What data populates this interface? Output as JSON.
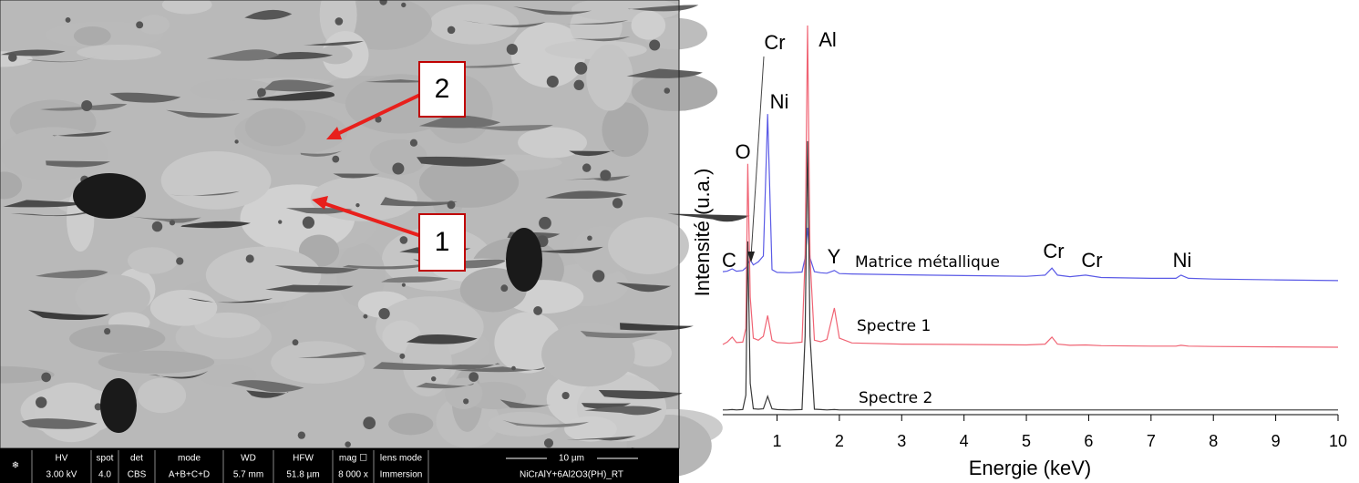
{
  "sem_image": {
    "labels": [
      "2",
      "1"
    ],
    "info_bar": {
      "columns": [
        {
          "header": "HV",
          "value": "3.00 kV"
        },
        {
          "header": "spot",
          "value": "4.0"
        },
        {
          "header": "det",
          "value": "CBS"
        },
        {
          "header": "mode",
          "value": "A+B+C+D"
        },
        {
          "header": "WD",
          "value": "5.7 mm"
        },
        {
          "header": "HFW",
          "value": "51.8 µm"
        },
        {
          "header": "mag ☐",
          "value": "8 000 x"
        },
        {
          "header": "lens mode",
          "value": "Immersion"
        }
      ],
      "scale_bar": "10 µm",
      "sample": "NiCrAlY+6Al2O3(PH)_RT"
    }
  },
  "chart_data": {
    "type": "line",
    "x_label": "Energie (keV)",
    "y_label": "Intensité (u.a.)",
    "x": [
      0.13,
      0.2,
      0.28,
      0.35,
      0.45,
      0.5,
      0.53,
      0.57,
      0.62,
      0.7,
      0.78,
      0.85,
      0.92,
      1.0,
      1.2,
      1.4,
      1.45,
      1.49,
      1.53,
      1.6,
      1.7,
      1.8,
      1.92,
      2.0,
      2.2,
      3,
      4,
      5,
      5.3,
      5.41,
      5.5,
      5.7,
      5.95,
      6.2,
      7,
      7.4,
      7.48,
      7.6,
      8,
      9,
      10
    ],
    "series": [
      {
        "name": "Matrice métallique",
        "color": "#5a5ae6",
        "values": [
          36.5,
          36.6,
          37.2,
          36.6,
          36.8,
          37.5,
          38.4,
          39.5,
          38.2,
          39.0,
          40.5,
          76.7,
          37.0,
          36.3,
          36.2,
          36.4,
          40,
          47.7,
          40,
          36.5,
          36.2,
          36.1,
          36.8,
          36.0,
          35.9,
          35.7,
          35.5,
          35.3,
          35.6,
          37.4,
          35.6,
          35.2,
          35.6,
          35.0,
          34.8,
          34.8,
          35.6,
          34.8,
          34.6,
          34.4,
          34.2
        ]
      },
      {
        "name": "Spectre 1",
        "color": "#f06474",
        "values": [
          17.9,
          18.5,
          19.8,
          18.4,
          18.5,
          22,
          64.0,
          30,
          19.5,
          19.0,
          20,
          25.3,
          19.0,
          18.4,
          18.2,
          18.5,
          40,
          99.3,
          40,
          19,
          18.6,
          19.2,
          27.2,
          19.5,
          18.3,
          18.0,
          17.9,
          17.8,
          18.0,
          19.8,
          18.0,
          17.7,
          17.8,
          17.6,
          17.5,
          17.5,
          17.7,
          17.5,
          17.4,
          17.3,
          17.2
        ]
      },
      {
        "name": "Spectre 2",
        "color": "#3a3a3a",
        "values": [
          1.2,
          1.2,
          1.3,
          1.2,
          1.3,
          5,
          44.2,
          8,
          1.5,
          1.4,
          1.5,
          4.7,
          1.5,
          1.3,
          1.2,
          1.3,
          20,
          69.8,
          20,
          1.4,
          1.3,
          1.2,
          1.3,
          1.2,
          1.2,
          1.2,
          1.2,
          1.2,
          1.2,
          1.2,
          1.2,
          1.2,
          1.2,
          1.2,
          1.2,
          1.2,
          1.2,
          1.2,
          1.2,
          1.2,
          1.2
        ]
      }
    ],
    "annotations": [
      "Cr",
      "Ni",
      "O",
      "Al",
      "C",
      "Y",
      "Cr",
      "Cr",
      "Ni"
    ],
    "xlim": [
      0.13,
      10
    ],
    "xticks": [
      1,
      2,
      3,
      4,
      5,
      6,
      7,
      8,
      9,
      10
    ],
    "ylim": [
      0,
      100
    ]
  }
}
